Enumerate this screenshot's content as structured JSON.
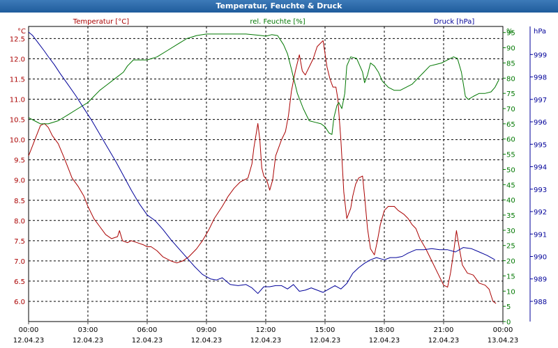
{
  "window": {
    "title": "Temperatur, Feuchte & Druck"
  },
  "colors": {
    "temperature": "#aa0000",
    "humidity": "#007700",
    "pressure": "#000099",
    "grid": "#000000",
    "axis": "#444444"
  },
  "chart_data": {
    "type": "line",
    "title": "Temperatur, Feuchte & Druck",
    "grid": true,
    "x_ticks": [
      {
        "time": "00:00",
        "date": "12.04.23"
      },
      {
        "time": "03:00",
        "date": "12.04.23"
      },
      {
        "time": "06:00",
        "date": "12.04.23"
      },
      {
        "time": "09:00",
        "date": "12.04.23"
      },
      {
        "time": "12:00",
        "date": "12.04.23"
      },
      {
        "time": "15:00",
        "date": "12.04.23"
      },
      {
        "time": "18:00",
        "date": "12.04.23"
      },
      {
        "time": "21:00",
        "date": "12.04.23"
      },
      {
        "time": "00:00",
        "date": "13.04.23"
      }
    ],
    "x_unit": "hours since 12.04.23 00:00",
    "xlim": [
      0,
      24
    ],
    "left_axis": {
      "label": "Temperatur [°C]",
      "unit": "°C",
      "ylim": [
        5.5,
        12.8
      ],
      "ticks": [
        "6.0",
        "6.5",
        "7.0",
        "7.5",
        "8.0",
        "8.5",
        "9.0",
        "9.5",
        "10.0",
        "10.5",
        "11.0",
        "11.5",
        "12.0",
        "12.5"
      ]
    },
    "middle_axis": {
      "label": "rel. Feuchte [%]",
      "unit": "%",
      "ylim": [
        0,
        97
      ],
      "ticks": [
        "0",
        "5",
        "10",
        "15",
        "20",
        "25",
        "30",
        "35",
        "40",
        "45",
        "50",
        "55",
        "60",
        "65",
        "70",
        "75",
        "80",
        "85",
        "90",
        "95"
      ]
    },
    "right_axis": {
      "label": "Druck [hPa]",
      "unit": "hPa",
      "ylim": [
        987.1,
        1000.25
      ],
      "ticks": [
        "988",
        "989",
        "990",
        "991",
        "992",
        "993",
        "994",
        "995",
        "996",
        "997",
        "998",
        "999"
      ]
    },
    "series": [
      {
        "name": "Temperatur [°C]",
        "axis": "left",
        "points": [
          [
            0,
            9.6
          ],
          [
            0.2,
            9.85
          ],
          [
            0.4,
            10.1
          ],
          [
            0.6,
            10.35
          ],
          [
            0.8,
            10.4
          ],
          [
            1.0,
            10.3
          ],
          [
            1.2,
            10.1
          ],
          [
            1.5,
            9.9
          ],
          [
            1.8,
            9.55
          ],
          [
            2.0,
            9.3
          ],
          [
            2.2,
            9.05
          ],
          [
            2.5,
            8.85
          ],
          [
            2.8,
            8.6
          ],
          [
            3.0,
            8.35
          ],
          [
            3.3,
            8.05
          ],
          [
            3.6,
            7.85
          ],
          [
            3.9,
            7.65
          ],
          [
            4.2,
            7.55
          ],
          [
            4.5,
            7.6
          ],
          [
            4.6,
            7.75
          ],
          [
            4.75,
            7.5
          ],
          [
            5.0,
            7.45
          ],
          [
            5.2,
            7.5
          ],
          [
            5.5,
            7.45
          ],
          [
            5.8,
            7.4
          ],
          [
            6.0,
            7.35
          ],
          [
            6.2,
            7.35
          ],
          [
            6.5,
            7.25
          ],
          [
            6.8,
            7.1
          ],
          [
            7.2,
            7.0
          ],
          [
            7.5,
            6.95
          ],
          [
            7.8,
            7.0
          ],
          [
            8.1,
            7.1
          ],
          [
            8.5,
            7.3
          ],
          [
            8.8,
            7.5
          ],
          [
            9.1,
            7.75
          ],
          [
            9.4,
            8.05
          ],
          [
            9.8,
            8.35
          ],
          [
            10.1,
            8.6
          ],
          [
            10.4,
            8.8
          ],
          [
            10.7,
            8.95
          ],
          [
            10.9,
            9.0
          ],
          [
            11.1,
            9.05
          ],
          [
            11.3,
            9.4
          ],
          [
            11.4,
            9.8
          ],
          [
            11.6,
            10.4
          ],
          [
            11.7,
            10.0
          ],
          [
            11.8,
            9.3
          ],
          [
            11.9,
            9.1
          ],
          [
            12.05,
            9.0
          ],
          [
            12.2,
            8.75
          ],
          [
            12.35,
            9.0
          ],
          [
            12.5,
            9.6
          ],
          [
            12.8,
            10.0
          ],
          [
            13.0,
            10.2
          ],
          [
            13.15,
            10.6
          ],
          [
            13.3,
            11.2
          ],
          [
            13.5,
            11.7
          ],
          [
            13.7,
            12.1
          ],
          [
            13.85,
            11.7
          ],
          [
            14.0,
            11.6
          ],
          [
            14.2,
            11.8
          ],
          [
            14.4,
            12.0
          ],
          [
            14.6,
            12.3
          ],
          [
            14.9,
            12.45
          ],
          [
            15.1,
            11.8
          ],
          [
            15.25,
            11.5
          ],
          [
            15.4,
            11.3
          ],
          [
            15.55,
            11.3
          ],
          [
            15.65,
            11.0
          ],
          [
            15.8,
            10.0
          ],
          [
            15.95,
            8.7
          ],
          [
            16.1,
            8.05
          ],
          [
            16.3,
            8.3
          ],
          [
            16.4,
            8.6
          ],
          [
            16.55,
            8.9
          ],
          [
            16.7,
            9.05
          ],
          [
            16.9,
            9.1
          ],
          [
            17.0,
            8.6
          ],
          [
            17.15,
            7.8
          ],
          [
            17.3,
            7.3
          ],
          [
            17.5,
            7.15
          ],
          [
            17.65,
            7.5
          ],
          [
            17.8,
            7.9
          ],
          [
            18.0,
            8.25
          ],
          [
            18.2,
            8.35
          ],
          [
            18.5,
            8.35
          ],
          [
            18.7,
            8.25
          ],
          [
            19.0,
            8.15
          ],
          [
            19.2,
            8.05
          ],
          [
            19.4,
            7.9
          ],
          [
            19.6,
            7.8
          ],
          [
            19.8,
            7.55
          ],
          [
            20.1,
            7.3
          ],
          [
            20.4,
            7.0
          ],
          [
            20.7,
            6.7
          ],
          [
            21.0,
            6.4
          ],
          [
            21.2,
            6.35
          ],
          [
            21.35,
            6.7
          ],
          [
            21.5,
            7.2
          ],
          [
            21.65,
            7.75
          ],
          [
            21.8,
            7.3
          ],
          [
            21.95,
            6.9
          ],
          [
            22.2,
            6.7
          ],
          [
            22.5,
            6.65
          ],
          [
            22.8,
            6.45
          ],
          [
            23.1,
            6.4
          ],
          [
            23.3,
            6.3
          ],
          [
            23.5,
            6.0
          ],
          [
            23.65,
            5.95
          ]
        ]
      },
      {
        "name": "rel. Feuchte [%]",
        "axis": "middle",
        "points": [
          [
            0,
            67
          ],
          [
            0.3,
            66
          ],
          [
            0.6,
            65
          ],
          [
            1.0,
            65
          ],
          [
            1.5,
            66
          ],
          [
            2.0,
            68
          ],
          [
            2.5,
            70
          ],
          [
            3.0,
            72
          ],
          [
            3.3,
            74
          ],
          [
            3.6,
            76
          ],
          [
            4.0,
            78
          ],
          [
            4.4,
            80
          ],
          [
            4.8,
            82
          ],
          [
            5.0,
            84
          ],
          [
            5.3,
            86
          ],
          [
            5.6,
            86
          ],
          [
            6.0,
            86
          ],
          [
            6.5,
            87
          ],
          [
            7.0,
            89
          ],
          [
            7.5,
            91
          ],
          [
            8.0,
            93
          ],
          [
            8.5,
            94
          ],
          [
            9.0,
            94.5
          ],
          [
            10,
            94.5
          ],
          [
            11,
            94.5
          ],
          [
            11.5,
            94.2
          ],
          [
            11.8,
            94
          ],
          [
            12.0,
            93.8
          ],
          [
            12.3,
            94.3
          ],
          [
            12.6,
            94
          ],
          [
            12.9,
            91
          ],
          [
            13.1,
            88
          ],
          [
            13.3,
            83
          ],
          [
            13.6,
            75
          ],
          [
            13.9,
            70
          ],
          [
            14.2,
            66
          ],
          [
            14.5,
            65.5
          ],
          [
            14.8,
            65
          ],
          [
            15.0,
            64
          ],
          [
            15.2,
            62
          ],
          [
            15.35,
            61.5
          ],
          [
            15.45,
            67
          ],
          [
            15.6,
            71
          ],
          [
            15.7,
            72
          ],
          [
            15.85,
            70
          ],
          [
            16.0,
            75
          ],
          [
            16.1,
            84
          ],
          [
            16.3,
            87
          ],
          [
            16.6,
            86.5
          ],
          [
            16.9,
            82
          ],
          [
            17.0,
            78.5
          ],
          [
            17.15,
            81
          ],
          [
            17.3,
            85
          ],
          [
            17.5,
            84
          ],
          [
            17.7,
            82
          ],
          [
            17.9,
            79
          ],
          [
            18.2,
            77
          ],
          [
            18.5,
            76
          ],
          [
            18.8,
            76
          ],
          [
            19.1,
            77
          ],
          [
            19.4,
            78
          ],
          [
            19.7,
            80
          ],
          [
            20.0,
            82
          ],
          [
            20.3,
            84
          ],
          [
            20.6,
            84.5
          ],
          [
            20.9,
            85
          ],
          [
            21.2,
            86
          ],
          [
            21.5,
            87
          ],
          [
            21.7,
            86.5
          ],
          [
            21.9,
            82
          ],
          [
            22.1,
            74
          ],
          [
            22.25,
            73
          ],
          [
            22.5,
            74
          ],
          [
            22.8,
            75
          ],
          [
            23.1,
            75
          ],
          [
            23.4,
            75.5
          ],
          [
            23.6,
            77
          ],
          [
            23.8,
            79.5
          ]
        ]
      },
      {
        "name": "Druck [hPa]",
        "axis": "right",
        "points": [
          [
            0,
            1000.0
          ],
          [
            0.2,
            999.85
          ],
          [
            0.5,
            999.5
          ],
          [
            0.8,
            999.15
          ],
          [
            1.0,
            998.9
          ],
          [
            1.3,
            998.55
          ],
          [
            1.6,
            998.15
          ],
          [
            2.0,
            997.65
          ],
          [
            2.4,
            997.15
          ],
          [
            2.8,
            996.6
          ],
          [
            3.2,
            996.05
          ],
          [
            3.6,
            995.45
          ],
          [
            4.0,
            994.85
          ],
          [
            4.4,
            994.25
          ],
          [
            4.8,
            993.6
          ],
          [
            5.2,
            992.95
          ],
          [
            5.6,
            992.35
          ],
          [
            6.0,
            991.85
          ],
          [
            6.4,
            991.6
          ],
          [
            6.8,
            991.2
          ],
          [
            7.2,
            990.75
          ],
          [
            7.6,
            990.35
          ],
          [
            8.0,
            989.95
          ],
          [
            8.4,
            989.55
          ],
          [
            8.8,
            989.2
          ],
          [
            9.2,
            989.0
          ],
          [
            9.5,
            988.95
          ],
          [
            9.8,
            989.05
          ],
          [
            10.2,
            988.75
          ],
          [
            10.6,
            988.7
          ],
          [
            11.0,
            988.75
          ],
          [
            11.3,
            988.6
          ],
          [
            11.6,
            988.35
          ],
          [
            11.9,
            988.65
          ],
          [
            12.2,
            988.65
          ],
          [
            12.5,
            988.7
          ],
          [
            12.8,
            988.7
          ],
          [
            13.1,
            988.55
          ],
          [
            13.4,
            988.75
          ],
          [
            13.7,
            988.45
          ],
          [
            14.0,
            988.5
          ],
          [
            14.3,
            988.6
          ],
          [
            14.6,
            988.5
          ],
          [
            14.9,
            988.4
          ],
          [
            15.2,
            988.55
          ],
          [
            15.5,
            988.7
          ],
          [
            15.8,
            988.55
          ],
          [
            16.1,
            988.8
          ],
          [
            16.4,
            989.25
          ],
          [
            16.7,
            989.5
          ],
          [
            17.0,
            989.7
          ],
          [
            17.3,
            989.85
          ],
          [
            17.6,
            989.95
          ],
          [
            18.0,
            989.85
          ],
          [
            18.3,
            989.95
          ],
          [
            18.6,
            989.95
          ],
          [
            18.9,
            990.0
          ],
          [
            19.2,
            990.15
          ],
          [
            19.6,
            990.3
          ],
          [
            20.0,
            990.3
          ],
          [
            20.4,
            990.35
          ],
          [
            20.8,
            990.3
          ],
          [
            21.2,
            990.3
          ],
          [
            21.6,
            990.2
          ],
          [
            22.0,
            990.4
          ],
          [
            22.4,
            990.35
          ],
          [
            22.8,
            990.2
          ],
          [
            23.2,
            990.05
          ],
          [
            23.6,
            989.85
          ]
        ]
      }
    ]
  }
}
